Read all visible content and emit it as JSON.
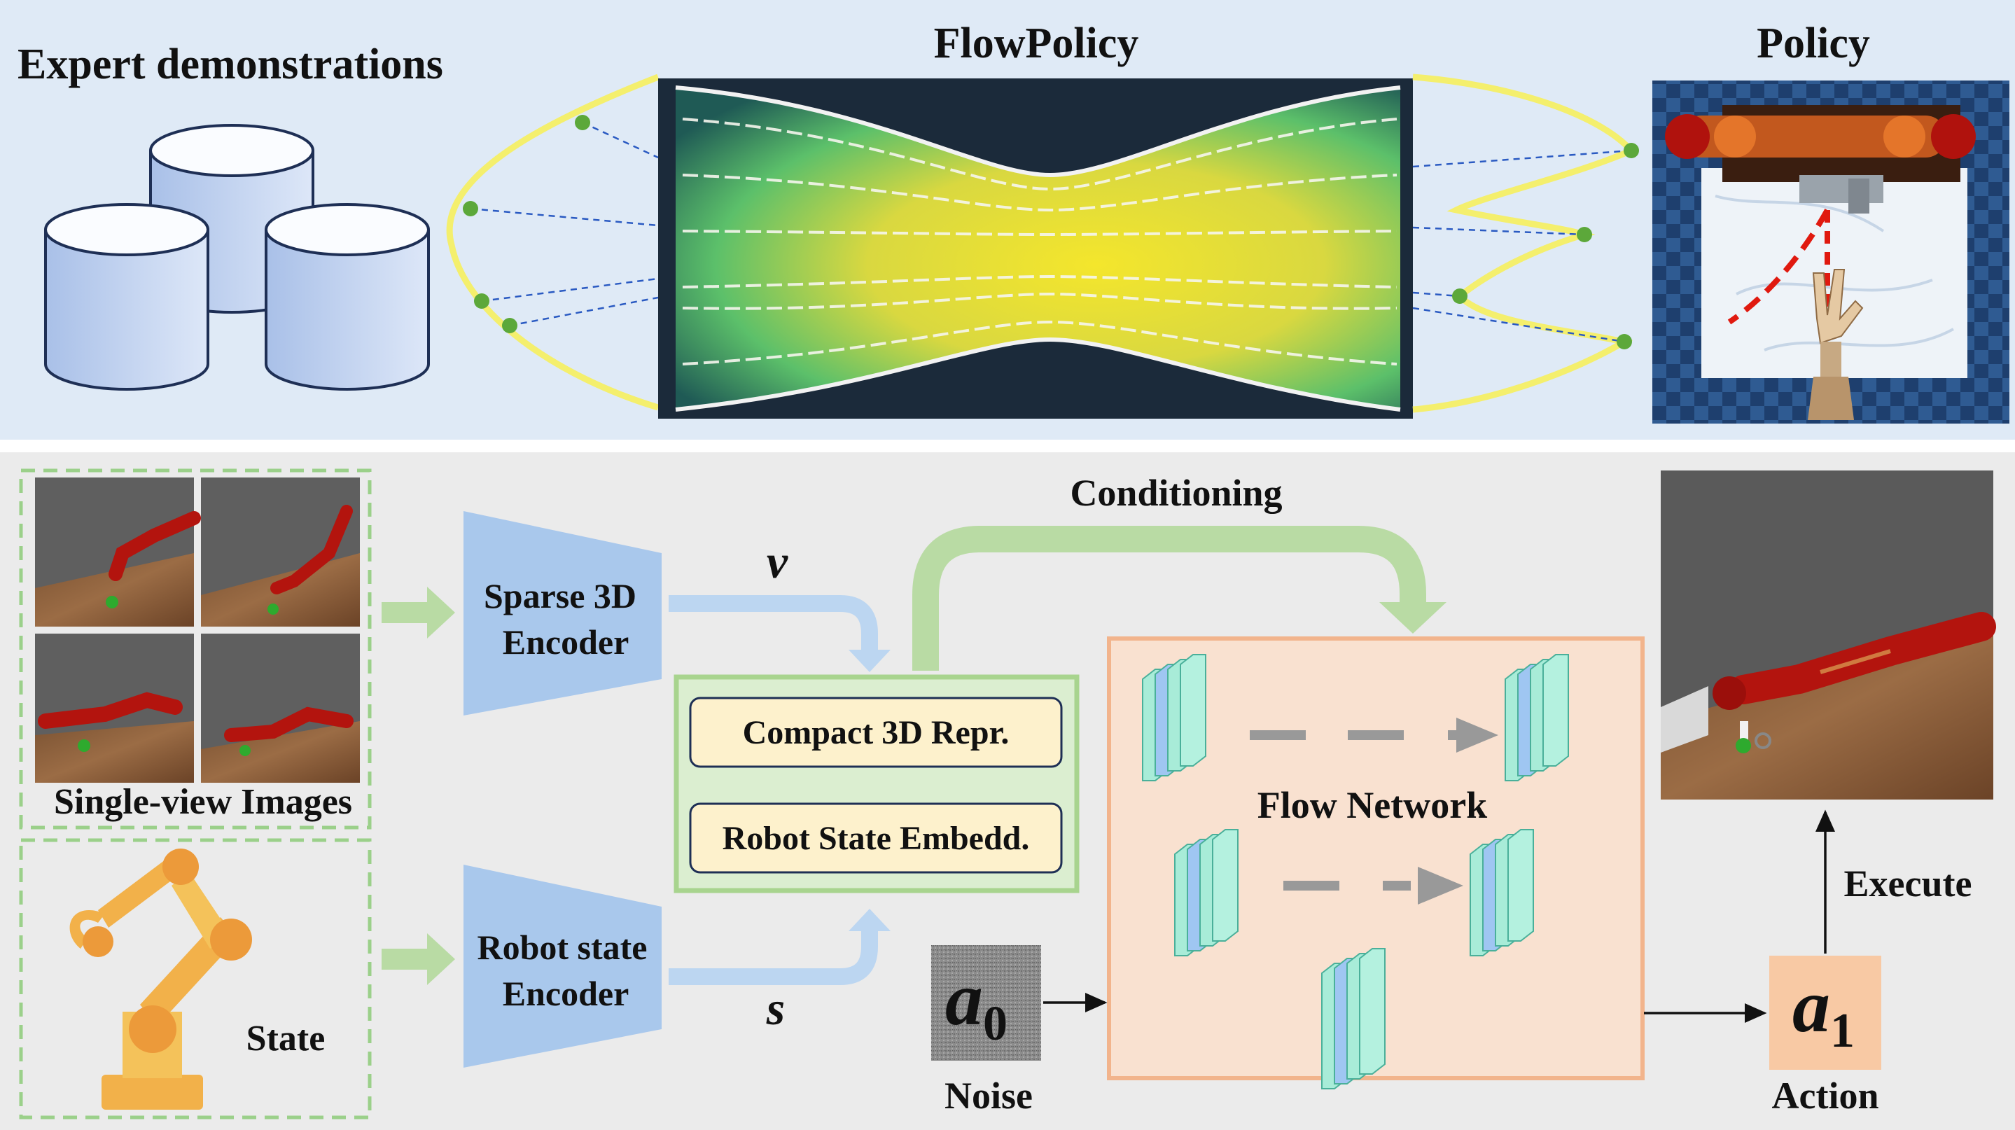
{
  "top_panel": {
    "expert_title": "Expert demonstrations",
    "flow_title": "FlowPolicy",
    "policy_title": "Policy"
  },
  "bottom_panel": {
    "images_caption": "Single-view Images",
    "state_caption": "State",
    "sparse_encoder_line1": "Sparse 3D",
    "sparse_encoder_line2": "Encoder",
    "robot_encoder_line1": "Robot state",
    "robot_encoder_line2": "Encoder",
    "symbol_v": "v",
    "symbol_s": "s",
    "conditioning": "Conditioning",
    "compact_repr": "Compact 3D Repr.",
    "robot_embed": "Robot State Embedd.",
    "flow_network": "Flow Network",
    "noise_symbol": "a",
    "noise_sub": "0",
    "noise_caption": "Noise",
    "action_symbol": "a",
    "action_sub": "1",
    "action_caption": "Action",
    "execute": "Execute"
  },
  "colors": {
    "top_bg": "#dfeaf6",
    "bottom_bg": "#ebebeb",
    "encoder_blue": "#a9c8ec",
    "arrow_green": "#b9dba4",
    "flow_box_fill": "#f9e1d0",
    "flow_box_border": "#f2b48c",
    "repr_fill": "#fdf1cc",
    "action_fill": "#f8c9a4",
    "robot_red": "#b3140e",
    "traj_yellow": "#f4ef6d",
    "dot_green": "#5ca83a"
  }
}
